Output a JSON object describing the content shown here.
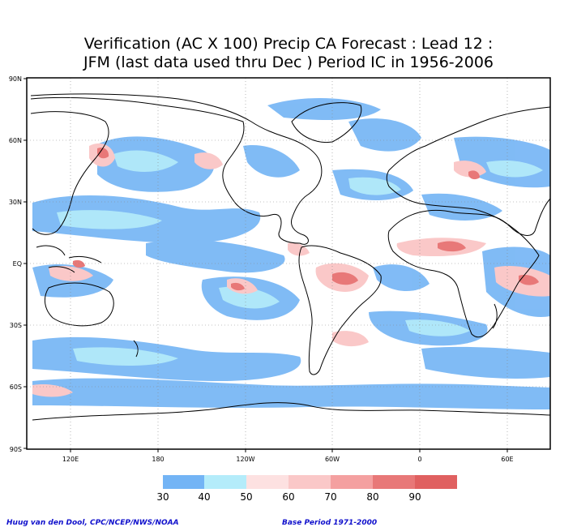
{
  "title": {
    "line1": "Verification (AC X 100) Precip CA Forecast : Lead 12 :",
    "line2": "JFM (last data used thru Dec ) Period IC in 1956-2006"
  },
  "lat_labels": [
    "90N",
    "60N",
    "30N",
    "EQ",
    "30S",
    "60S",
    "90S"
  ],
  "lon_labels": [
    "120E",
    "180",
    "120W",
    "60W",
    "0",
    "60E"
  ],
  "legend": {
    "labels": [
      "30",
      "40",
      "50",
      "60",
      "70",
      "80",
      "90"
    ],
    "colors": [
      "#73b4f5",
      "#b4ecfa",
      "#fde1e1",
      "#fac8c8",
      "#f4a0a0",
      "#e87878",
      "#e06060"
    ]
  },
  "footer": {
    "credit": "Huug van den Dool, CPC/NCEP/NWS/NOAA",
    "base_period": "Base Period 1971-2000"
  }
}
